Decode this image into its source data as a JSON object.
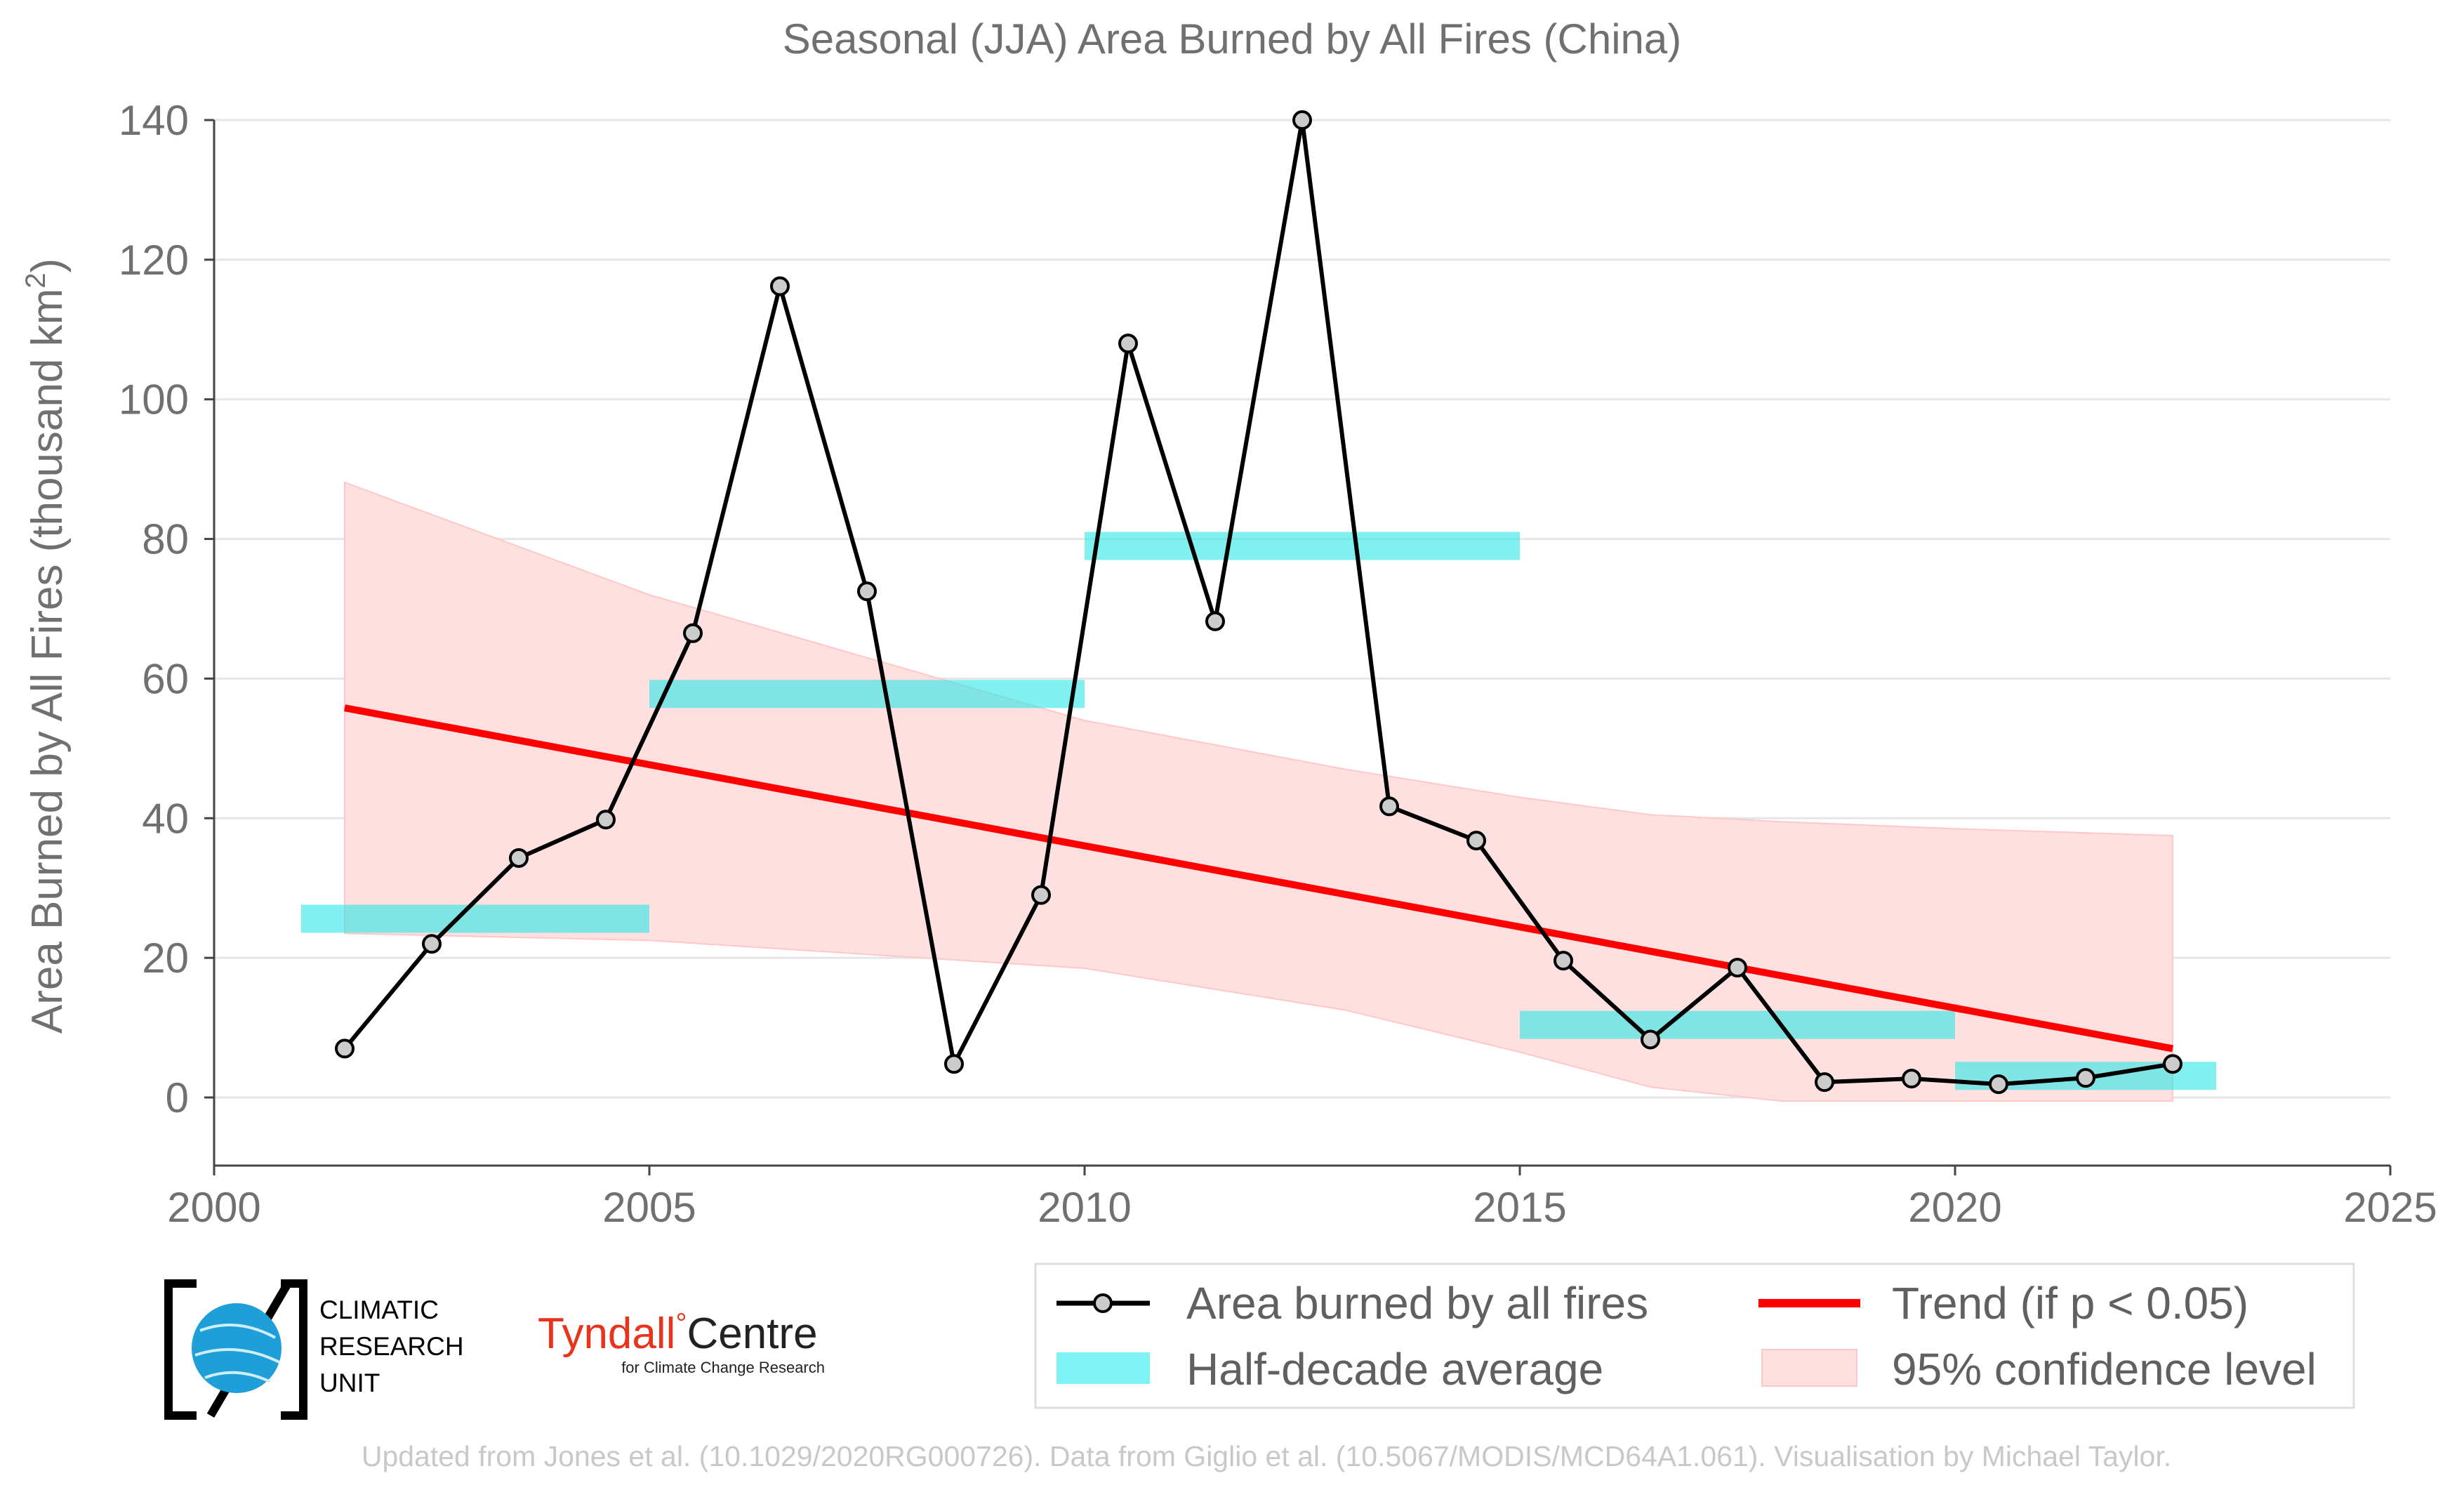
{
  "chart_data": {
    "type": "line",
    "title": "Seasonal (JJA) Area Burned by All Fires (China)",
    "ylabel_main": "Area Burned by All Fires (thousand km",
    "ylabel_sup": "2",
    "ylabel_close": ")",
    "xlim": [
      2000,
      2025
    ],
    "ylim": [
      -11,
      140
    ],
    "x_ticks": [
      2000,
      2005,
      2010,
      2015,
      2020,
      2025
    ],
    "y_ticks": [
      0,
      20,
      40,
      60,
      80,
      100,
      120,
      140
    ],
    "grid": true,
    "series": [
      {
        "name": "Area burned by all fires",
        "color": "#000000",
        "x": [
          2001.5,
          2002.5,
          2003.5,
          2004.5,
          2005.5,
          2006.5,
          2007.5,
          2008.5,
          2009.5,
          2010.5,
          2011.5,
          2012.5,
          2013.5,
          2014.5,
          2015.5,
          2016.5,
          2017.5,
          2018.5,
          2019.5,
          2020.5,
          2021.5,
          2022.5
        ],
        "y": [
          7.0,
          22.0,
          34.3,
          39.8,
          66.5,
          116.2,
          72.5,
          4.8,
          29.0,
          108.0,
          68.2,
          140.0,
          41.7,
          36.8,
          19.6,
          8.3,
          18.6,
          2.2,
          2.7,
          1.9,
          2.8,
          4.8
        ]
      },
      {
        "name": "Half-decade average",
        "color": "#33e6e6",
        "segments": [
          {
            "x0": 2001,
            "x1": 2005,
            "y": 25.6
          },
          {
            "x0": 2005,
            "x1": 2010,
            "y": 57.8
          },
          {
            "x0": 2010,
            "x1": 2015,
            "y": 79.0
          },
          {
            "x0": 2015,
            "x1": 2020,
            "y": 10.4
          },
          {
            "x0": 2020,
            "x1": 2023,
            "y": 3.1
          }
        ]
      },
      {
        "name": "Trend (if p < 0.05)",
        "color": "#ff0000",
        "x": [
          2001.5,
          2022.5
        ],
        "y": [
          55.8,
          7.0
        ]
      },
      {
        "name": "95% confidence level",
        "color": "#ffb3b3",
        "x": [
          2001.5,
          2005,
          2010,
          2013,
          2015,
          2016.5,
          2018,
          2020,
          2022.5
        ],
        "upper": [
          88.1,
          72.0,
          54.0,
          47.0,
          43.0,
          40.5,
          39.5,
          38.5,
          37.5
        ],
        "lower": [
          23.5,
          22.5,
          18.5,
          12.5,
          6.5,
          1.5,
          -0.5,
          -0.5,
          -0.5
        ]
      }
    ],
    "legend_position": "bottom-right"
  },
  "logos": {
    "cru_line1": "CLIMATIC",
    "cru_line2": "RESEARCH",
    "cru_line3": "UNIT",
    "tyndall_main": "Tyndall",
    "tyndall_degree": "°",
    "tyndall_centre": "Centre",
    "tyndall_sub": "for Climate Change Research"
  },
  "footer": "Updated from Jones et al. (10.1029/2020RG000726). Data from Giglio et al. (10.5067/MODIS/MCD64A1.061). Visualisation by Michael Taylor."
}
